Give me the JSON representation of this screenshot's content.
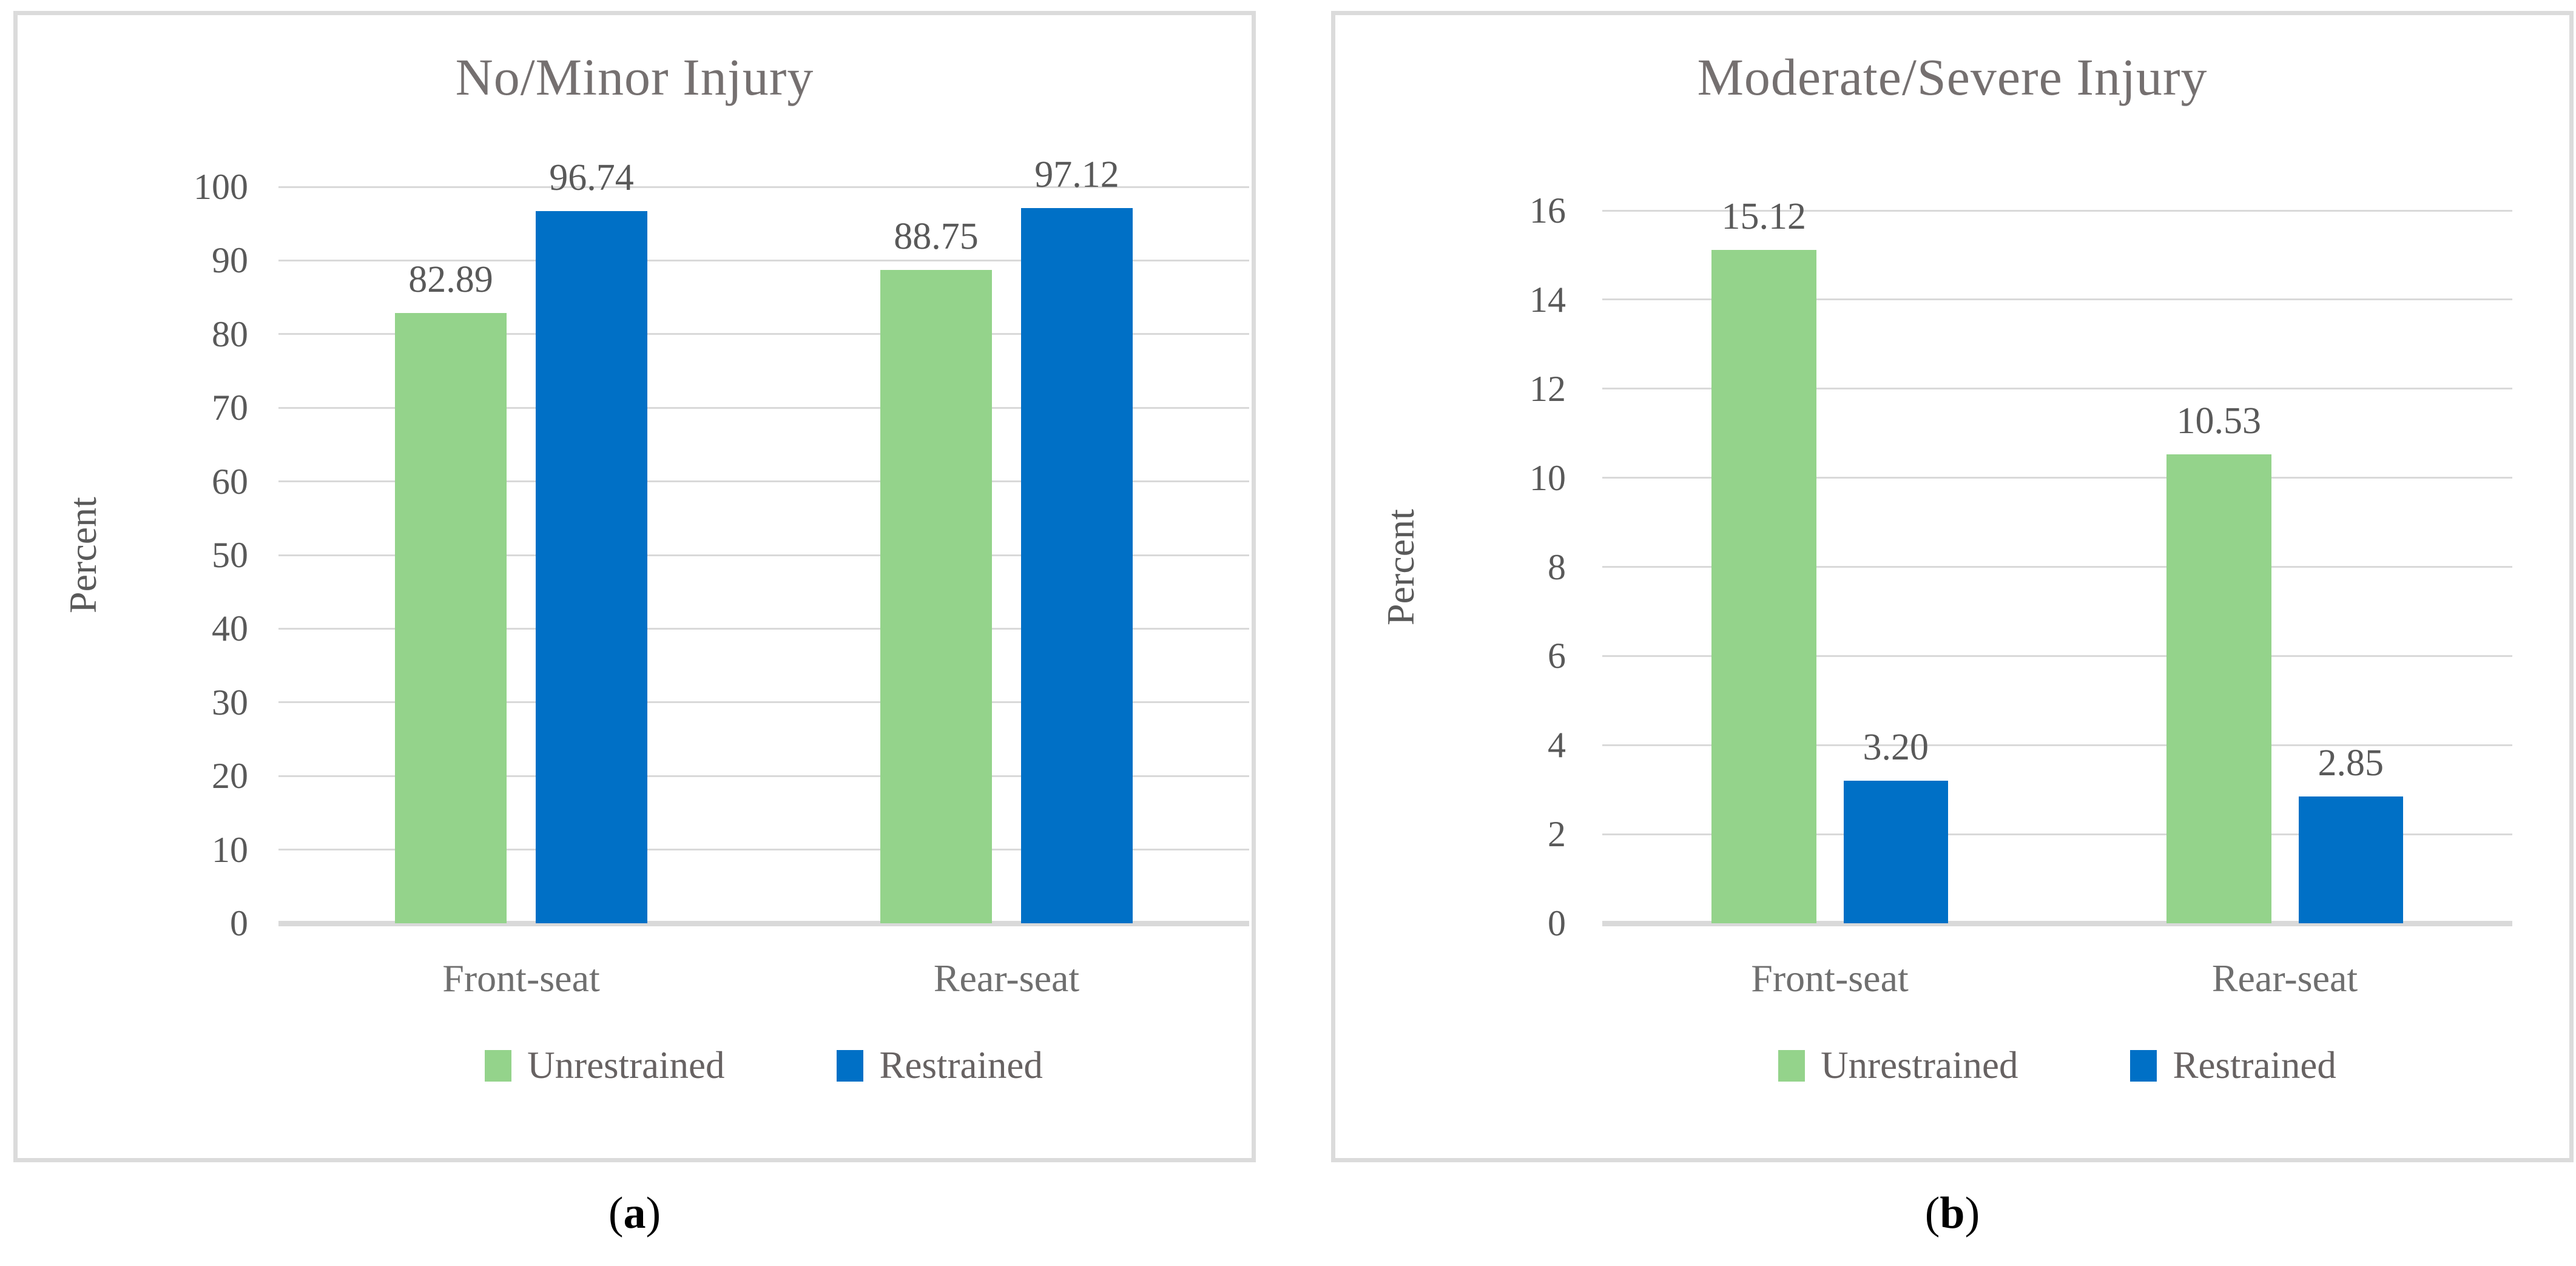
{
  "figure_role": "two-panel bar chart figure",
  "colors": {
    "unrestrained_green": "#94D38B",
    "restrained_blue": "#0070C6",
    "gridline_gray": "#D9D9D9"
  },
  "captions": [
    {
      "open": "(",
      "letter": "a",
      "close": ")"
    },
    {
      "open": "(",
      "letter": "b",
      "close": ")"
    }
  ],
  "chart_data": [
    {
      "type": "bar",
      "title": "No/Minor Injury",
      "xlabel": "",
      "ylabel": "Percent",
      "categories": [
        "Front-seat",
        "Rear-seat"
      ],
      "series": [
        {
          "name": "Unrestrained",
          "color": "#94D38B",
          "values": [
            82.89,
            88.75
          ]
        },
        {
          "name": "Restrained",
          "color": "#0070C6",
          "values": [
            96.74,
            97.12
          ]
        }
      ],
      "ylim": [
        0,
        100
      ],
      "yticks": [
        0,
        10,
        20,
        30,
        40,
        50,
        60,
        70,
        80,
        90,
        100
      ],
      "grid": true,
      "legend_position": "bottom",
      "value_label_decimals": 2
    },
    {
      "type": "bar",
      "title": "Moderate/Severe Injury",
      "xlabel": "",
      "ylabel": "Percent",
      "categories": [
        "Front-seat",
        "Rear-seat"
      ],
      "series": [
        {
          "name": "Unrestrained",
          "color": "#94D38B",
          "values": [
            15.12,
            10.53
          ]
        },
        {
          "name": "Restrained",
          "color": "#0070C6",
          "values": [
            3.2,
            2.85
          ]
        }
      ],
      "ylim": [
        0,
        16
      ],
      "yticks": [
        0,
        2,
        4,
        6,
        8,
        10,
        12,
        14,
        16
      ],
      "grid": true,
      "legend_position": "bottom",
      "value_label_decimals": 2
    }
  ]
}
